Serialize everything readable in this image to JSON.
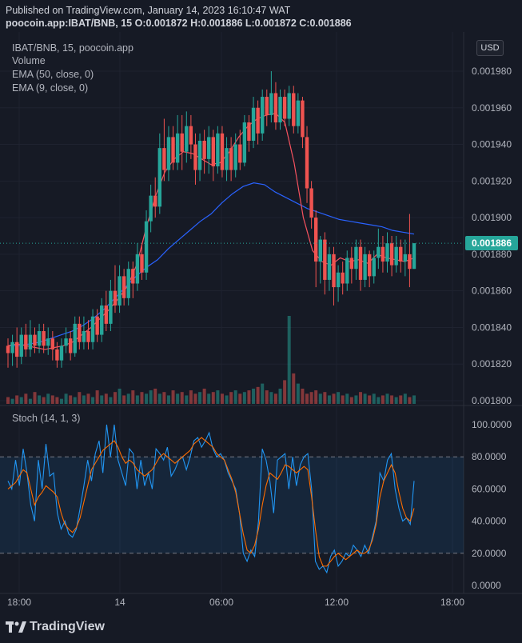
{
  "header": {
    "published": "Published on TradingView.com, January 14, 2023 16:10:47 WAT",
    "symbol_line": "poocoin.app:IBAT/BNB, 15",
    "ohlc": "O:0.001872 H:0.001886 L:0.001872 C:0.001886"
  },
  "legend": {
    "title": "IBAT/BNB, 15, poocoin.app",
    "volume": "Volume",
    "ema50": "EMA (50, close, 0)",
    "ema9": "EMA (9, close, 0)",
    "stoch": "Stoch (14, 1, 3)"
  },
  "currency_button": "USD",
  "last_price_label": "0.001886",
  "footer_logo": "TradingView",
  "colors": {
    "background": "#161a25",
    "up": "#26a69a",
    "down": "#ef5350",
    "ema50": "#2962ff",
    "ema9": "#f7525f",
    "stoch_k": "#2196f3",
    "stoch_d": "#ff6d00"
  },
  "chart_data": [
    {
      "type": "candlestick",
      "title": "IBAT/BNB, 15, poocoin.app",
      "x_ticks": [
        "18:00",
        "14",
        "06:00",
        "12:00",
        "18:00"
      ],
      "y_ticks": [
        "0.001980",
        "0.001960",
        "0.001940",
        "0.001920",
        "0.001900",
        "0.001880",
        "0.001860",
        "0.001840",
        "0.001820",
        "0.001800"
      ],
      "ylim": [
        0.0018,
        0.001983
      ],
      "last_price": 0.001886,
      "grid": true,
      "candles": [
        [
          0.00183,
          0.001826,
          0.001834,
          0.001818
        ],
        [
          0.001826,
          0.001832,
          0.001836,
          0.001819
        ],
        [
          0.001832,
          0.001824,
          0.00184,
          0.001818
        ],
        [
          0.001824,
          0.001836,
          0.00184,
          0.00182
        ],
        [
          0.001836,
          0.001828,
          0.001842,
          0.001824
        ],
        [
          0.001828,
          0.001836,
          0.001844,
          0.001824
        ],
        [
          0.001836,
          0.00183,
          0.00184,
          0.001826
        ],
        [
          0.00183,
          0.001838,
          0.001842,
          0.001826
        ],
        [
          0.001838,
          0.00183,
          0.001842,
          0.001826
        ],
        [
          0.00183,
          0.001834,
          0.00184,
          0.001825
        ],
        [
          0.001834,
          0.001828,
          0.001838,
          0.001822
        ],
        [
          0.001828,
          0.001822,
          0.001832,
          0.001818
        ],
        [
          0.001822,
          0.00183,
          0.001834,
          0.001818
        ],
        [
          0.00183,
          0.001834,
          0.00184,
          0.001826
        ],
        [
          0.001834,
          0.001826,
          0.001838,
          0.001822
        ],
        [
          0.001826,
          0.001842,
          0.001846,
          0.001824
        ],
        [
          0.001842,
          0.001832,
          0.001846,
          0.001828
        ],
        [
          0.001832,
          0.001838,
          0.001846,
          0.001828
        ],
        [
          0.001838,
          0.001832,
          0.001844,
          0.001828
        ],
        [
          0.001832,
          0.001846,
          0.00185,
          0.001828
        ],
        [
          0.001846,
          0.001836,
          0.00185,
          0.001832
        ],
        [
          0.001836,
          0.001852,
          0.001856,
          0.001832
        ],
        [
          0.001852,
          0.001842,
          0.00186,
          0.001838
        ],
        [
          0.001842,
          0.00186,
          0.001866,
          0.001838
        ],
        [
          0.00186,
          0.001852,
          0.001874,
          0.001848
        ],
        [
          0.001852,
          0.001868,
          0.001874,
          0.001848
        ],
        [
          0.001868,
          0.001856,
          0.001872,
          0.001852
        ],
        [
          0.001856,
          0.001872,
          0.001876,
          0.001852
        ],
        [
          0.001872,
          0.001864,
          0.001876,
          0.001856
        ],
        [
          0.001864,
          0.00188,
          0.001886,
          0.00186
        ],
        [
          0.00188,
          0.00187,
          0.001886,
          0.001866
        ],
        [
          0.00187,
          0.001898,
          0.001904,
          0.001866
        ],
        [
          0.001898,
          0.001912,
          0.001918,
          0.001892
        ],
        [
          0.001912,
          0.001906,
          0.001922,
          0.0019
        ],
        [
          0.001906,
          0.001938,
          0.001946,
          0.001902
        ],
        [
          0.001938,
          0.001926,
          0.001954,
          0.00192
        ],
        [
          0.001926,
          0.001944,
          0.00195,
          0.00192
        ],
        [
          0.001944,
          0.00193,
          0.00195,
          0.001926
        ],
        [
          0.00193,
          0.001946,
          0.001956,
          0.001926
        ],
        [
          0.001946,
          0.001936,
          0.001956,
          0.001926
        ],
        [
          0.001936,
          0.00195,
          0.001958,
          0.00193
        ],
        [
          0.00195,
          0.00194,
          0.001956,
          0.001932
        ],
        [
          0.00194,
          0.001926,
          0.001946,
          0.001918
        ],
        [
          0.001926,
          0.001942,
          0.001946,
          0.00192
        ],
        [
          0.001942,
          0.001932,
          0.001948,
          0.001924
        ],
        [
          0.001932,
          0.001944,
          0.00195,
          0.001924
        ],
        [
          0.001944,
          0.001928,
          0.001948,
          0.00192
        ],
        [
          0.001928,
          0.001946,
          0.00195,
          0.001924
        ],
        [
          0.001946,
          0.001926,
          0.00195,
          0.001922
        ],
        [
          0.001926,
          0.001938,
          0.001944,
          0.00192
        ],
        [
          0.001938,
          0.001926,
          0.001944,
          0.00192
        ],
        [
          0.001926,
          0.00194,
          0.001946,
          0.001922
        ],
        [
          0.00194,
          0.00193,
          0.001948,
          0.001926
        ],
        [
          0.00193,
          0.001952,
          0.001956,
          0.001928
        ],
        [
          0.001952,
          0.001942,
          0.001956,
          0.001936
        ],
        [
          0.001942,
          0.00196,
          0.001966,
          0.001938
        ],
        [
          0.00196,
          0.001946,
          0.001964,
          0.00194
        ],
        [
          0.001946,
          0.001966,
          0.00197,
          0.001942
        ],
        [
          0.001966,
          0.001956,
          0.00197,
          0.00195
        ],
        [
          0.001956,
          0.001968,
          0.00198,
          0.001952
        ],
        [
          0.001968,
          0.001952,
          0.001974,
          0.001948
        ],
        [
          0.001952,
          0.001966,
          0.00197,
          0.001948
        ],
        [
          0.001966,
          0.001954,
          0.00197,
          0.00195
        ],
        [
          0.001954,
          0.001968,
          0.001972,
          0.00195
        ],
        [
          0.001968,
          0.00195,
          0.001972,
          0.001946
        ],
        [
          0.00195,
          0.001964,
          0.001968,
          0.001946
        ],
        [
          0.001964,
          0.001944,
          0.001966,
          0.001938
        ],
        [
          0.001944,
          0.001916,
          0.00195,
          0.001908
        ],
        [
          0.001916,
          0.0019,
          0.00192,
          0.001894
        ],
        [
          0.0019,
          0.001876,
          0.001904,
          0.001862
        ],
        [
          0.001876,
          0.001888,
          0.00189,
          0.001864
        ],
        [
          0.001888,
          0.001866,
          0.001892,
          0.001858
        ],
        [
          0.001866,
          0.00188,
          0.001884,
          0.00186
        ],
        [
          0.00188,
          0.001862,
          0.001884,
          0.001852
        ],
        [
          0.001862,
          0.00187,
          0.001874,
          0.001854
        ],
        [
          0.00187,
          0.001864,
          0.001876,
          0.001858
        ],
        [
          0.001864,
          0.001878,
          0.001882,
          0.00186
        ],
        [
          0.001878,
          0.001872,
          0.001884,
          0.001864
        ],
        [
          0.001872,
          0.001884,
          0.001888,
          0.001866
        ],
        [
          0.001884,
          0.001866,
          0.001888,
          0.00186
        ],
        [
          0.001866,
          0.00188,
          0.001884,
          0.001862
        ],
        [
          0.00188,
          0.001868,
          0.001882,
          0.001862
        ],
        [
          0.001868,
          0.001878,
          0.001882,
          0.001864
        ],
        [
          0.001878,
          0.001884,
          0.001894,
          0.001872
        ],
        [
          0.001884,
          0.001876,
          0.00189,
          0.00187
        ],
        [
          0.001876,
          0.001886,
          0.001892,
          0.00187
        ],
        [
          0.001886,
          0.001874,
          0.00189,
          0.001868
        ],
        [
          0.001874,
          0.001884,
          0.00189,
          0.00187
        ],
        [
          0.001884,
          0.001876,
          0.001888,
          0.00187
        ],
        [
          0.001876,
          0.00188,
          0.001888,
          0.001868
        ],
        [
          0.00188,
          0.001872,
          0.001902,
          0.001862
        ],
        [
          0.001872,
          0.001886,
          0.001886,
          0.001872
        ]
      ],
      "ema50": [
        0.00183,
        0.00183,
        0.001831,
        0.001832,
        0.001834,
        0.001836,
        0.001838,
        0.001841,
        0.001845,
        0.00185,
        0.001856,
        0.001862,
        0.001868,
        0.001873,
        0.001877,
        0.001883,
        0.001888,
        0.001893,
        0.001898,
        0.001902,
        0.001908,
        0.001913,
        0.001917,
        0.001919,
        0.001918,
        0.001914,
        0.001911,
        0.001908,
        0.001905,
        0.001903,
        0.001901,
        0.001899,
        0.001898,
        0.001897,
        0.001896,
        0.001895,
        0.001893,
        0.001892,
        0.001891
      ],
      "ema9": [
        0.00183,
        0.001831,
        0.00183,
        0.001829,
        0.001828,
        0.001829,
        0.00183,
        0.001832,
        0.001836,
        0.00184,
        0.001845,
        0.00185,
        0.001856,
        0.001863,
        0.001875,
        0.001895,
        0.001912,
        0.001925,
        0.001932,
        0.001936,
        0.001935,
        0.001932,
        0.001929,
        0.00193,
        0.001936,
        0.001944,
        0.00195,
        0.001954,
        0.001956,
        0.001957,
        0.001952,
        0.00193,
        0.0019,
        0.001882,
        0.001876,
        0.001874,
        0.001878,
        0.001876,
        0.001877,
        0.001875,
        0.00188,
        0.001878,
        0.001877,
        0.001876,
        0.001878
      ],
      "volume": [
        4,
        3,
        5,
        4,
        6,
        3,
        7,
        5,
        4,
        6,
        5,
        4,
        3,
        6,
        5,
        4,
        7,
        5,
        6,
        4,
        8,
        5,
        6,
        4,
        7,
        9,
        5,
        6,
        8,
        5,
        7,
        6,
        8,
        9,
        6,
        7,
        5,
        8,
        6,
        7,
        5,
        8,
        6,
        7,
        9,
        6,
        7,
        8,
        6,
        5,
        7,
        8,
        6,
        7,
        8,
        9,
        10,
        12,
        8,
        7,
        6,
        9,
        14,
        52,
        18,
        12,
        9,
        6,
        7,
        8,
        6,
        7,
        5,
        6,
        7,
        5,
        6,
        4,
        5,
        7,
        6,
        5,
        6,
        4,
        5,
        6,
        5,
        4,
        5,
        6,
        4,
        5
      ]
    },
    {
      "type": "line",
      "title": "Stoch (14, 1, 3)",
      "y_ticks": [
        "100.0000",
        "80.0000",
        "60.0000",
        "40.0000",
        "20.0000",
        "0.0000"
      ],
      "ylim": [
        0,
        100
      ],
      "bands": [
        20,
        80
      ],
      "series": [
        {
          "name": "%K",
          "values": [
            65,
            60,
            78,
            62,
            85,
            70,
            50,
            40,
            78,
            60,
            88,
            68,
            70,
            45,
            35,
            40,
            32,
            30,
            35,
            48,
            62,
            78,
            65,
            82,
            90,
            70,
            100,
            80,
            100,
            78,
            70,
            62,
            85,
            82,
            60,
            78,
            62,
            70,
            60,
            85,
            82,
            78,
            86,
            68,
            72,
            78,
            80,
            72,
            80,
            90,
            92,
            86,
            90,
            95,
            85,
            80,
            82,
            78,
            70,
            65,
            60,
            45,
            20,
            15,
            22,
            18,
            40,
            85,
            78,
            65,
            45,
            78,
            80,
            82,
            60,
            80,
            62,
            75,
            80,
            82,
            60,
            15,
            10,
            12,
            8,
            18,
            22,
            12,
            15,
            20,
            18,
            25,
            22,
            18,
            25,
            20,
            30,
            40,
            70,
            65,
            78,
            82,
            60,
            48,
            40,
            42,
            38,
            65
          ]
        },
        {
          "name": "%D",
          "values": [
            60,
            62,
            64,
            68,
            72,
            70,
            60,
            50,
            55,
            58,
            62,
            60,
            58,
            55,
            45,
            38,
            35,
            33,
            36,
            42,
            52,
            62,
            72,
            76,
            80,
            84,
            86,
            88,
            90,
            86,
            80,
            76,
            78,
            76,
            72,
            70,
            68,
            70,
            72,
            76,
            80,
            82,
            80,
            78,
            76,
            78,
            80,
            82,
            84,
            88,
            90,
            92,
            90,
            88,
            86,
            82,
            80,
            78,
            72,
            66,
            58,
            45,
            32,
            22,
            20,
            25,
            35,
            50,
            62,
            70,
            68,
            66,
            70,
            75,
            74,
            72,
            70,
            72,
            74,
            72,
            55,
            35,
            18,
            12,
            12,
            15,
            18,
            20,
            18,
            16,
            18,
            20,
            22,
            20,
            20,
            22,
            28,
            38,
            55,
            65,
            70,
            75,
            70,
            58,
            48,
            42,
            40,
            48
          ]
        }
      ]
    }
  ]
}
